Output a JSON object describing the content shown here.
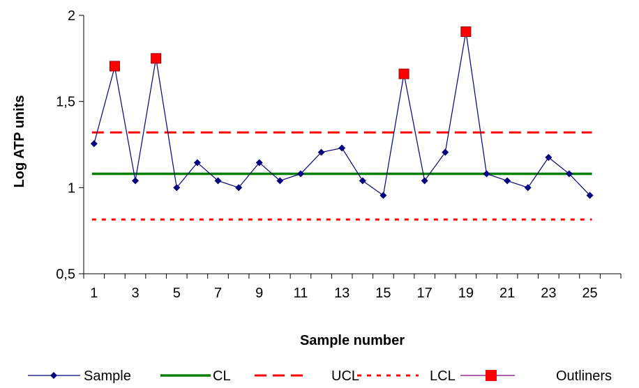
{
  "chart_data": {
    "type": "line",
    "title": "",
    "xlabel": "Sample number",
    "ylabel": "Log ATP units",
    "x": [
      1,
      2,
      3,
      4,
      5,
      6,
      7,
      8,
      9,
      10,
      11,
      12,
      13,
      14,
      15,
      16,
      17,
      18,
      19,
      20,
      21,
      22,
      23,
      24,
      25
    ],
    "x_tick_labels": [
      "1",
      "3",
      "5",
      "7",
      "9",
      "11",
      "13",
      "15",
      "17",
      "19",
      "21",
      "23",
      "25"
    ],
    "y_tick_labels": [
      "0,5",
      "1",
      "1,5",
      "2"
    ],
    "y_ticks": [
      0.5,
      1,
      1.5,
      2
    ],
    "xlim": [
      0.5,
      26.5
    ],
    "ylim": [
      0.5,
      2
    ],
    "legend_position": "bottom",
    "series": [
      {
        "name": "Sample",
        "color": "#000080",
        "style": "line-diamond",
        "values": [
          1.255,
          1.7,
          1.04,
          1.75,
          1.0,
          1.145,
          1.04,
          1.0,
          1.145,
          1.04,
          1.08,
          1.205,
          1.23,
          1.04,
          0.955,
          1.66,
          1.04,
          1.205,
          1.905,
          1.08,
          1.04,
          1.0,
          1.175,
          1.08,
          0.955
        ]
      },
      {
        "name": "CL",
        "color": "#008000",
        "style": "solid",
        "value": 1.08
      },
      {
        "name": "UCL",
        "color": "#ff0000",
        "style": "dashed",
        "value": 1.32
      },
      {
        "name": "LCL",
        "color": "#ff0000",
        "style": "dotted",
        "value": 0.815
      },
      {
        "name": "Outliners",
        "color": "#ff0000",
        "style": "square-marker",
        "points": [
          {
            "x": 2,
            "y": 1.705
          },
          {
            "x": 4,
            "y": 1.75
          },
          {
            "x": 16,
            "y": 1.66
          },
          {
            "x": 19,
            "y": 1.905
          }
        ]
      }
    ]
  }
}
